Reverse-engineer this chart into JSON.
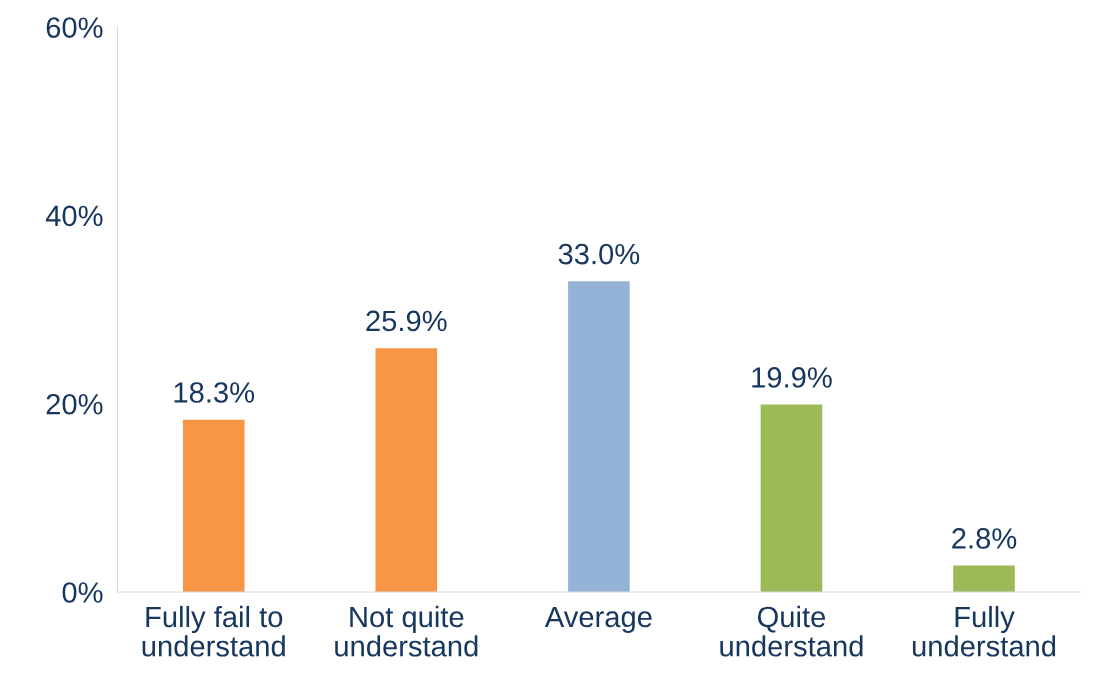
{
  "chart_data": {
    "type": "bar",
    "categories": [
      "Fully fail to\nunderstand",
      "Not quite\nunderstand",
      "Average",
      "Quite\nunderstand",
      "Fully\nunderstand"
    ],
    "values": [
      18.3,
      25.9,
      33.0,
      19.9,
      2.8
    ],
    "colors": [
      "#f79646",
      "#f79646",
      "#95b3d7",
      "#9bbb59",
      "#9bbb59"
    ],
    "value_labels": [
      "18.3%",
      "25.9%",
      "33.0%",
      "19.9%",
      "2.8%"
    ],
    "ylim": [
      0,
      60
    ],
    "yticks": [
      {
        "value": 0,
        "label": "0%"
      },
      {
        "value": 20,
        "label": "20%"
      },
      {
        "value": 40,
        "label": "40%"
      },
      {
        "value": 60,
        "label": "60%"
      }
    ],
    "grid": false,
    "legend": false
  }
}
